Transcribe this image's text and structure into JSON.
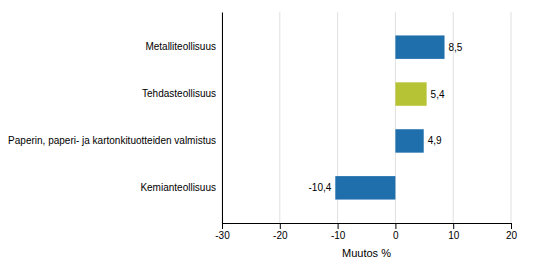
{
  "chart_data": {
    "type": "bar",
    "orientation": "horizontal",
    "categories": [
      "Kemianteollisuus",
      "Paperin, paperi- ja kartonkituotteiden valmistus",
      "Tehdasteollisuus",
      "Metalliteollisuus"
    ],
    "values": [
      -10.4,
      4.9,
      5.4,
      8.5
    ],
    "value_labels": [
      "-10,4",
      "4,9",
      "5,4",
      "8,5"
    ],
    "data_labels": true,
    "colors": [
      "#1f6fad",
      "#1f6fad",
      "#b5c334",
      "#1f6fad"
    ],
    "xlabel": "Muutos %",
    "xlim": [
      -30,
      20
    ],
    "xticks": [
      -30,
      -20,
      -10,
      0,
      10,
      20
    ],
    "grid": true
  }
}
